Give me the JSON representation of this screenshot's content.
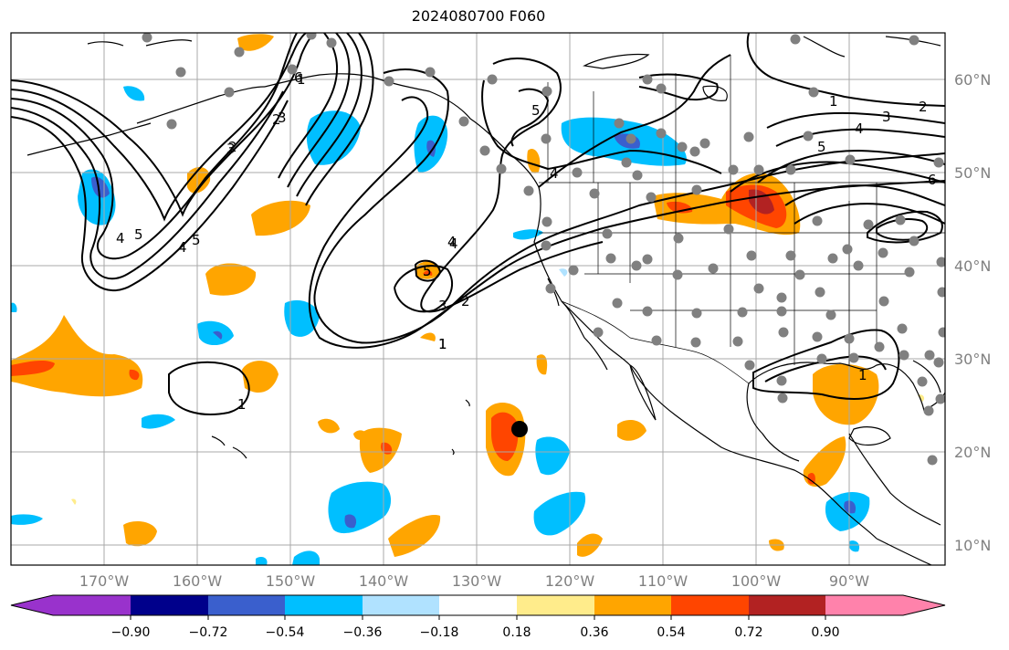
{
  "title": "2024080700 F060",
  "map": {
    "lat_labels": [
      "60°N",
      "50°N",
      "40°N",
      "30°N",
      "20°N",
      "10°N"
    ],
    "lon_labels": [
      "170°W",
      "160°W",
      "150°W",
      "140°W",
      "130°W",
      "120°W",
      "110°W",
      "100°W",
      "90°W"
    ],
    "contour_labels": [
      "1",
      "2",
      "3",
      "4",
      "5",
      "6",
      "4",
      "5",
      "4",
      "3",
      "2",
      "1",
      "5",
      "4",
      "5",
      "3",
      "2",
      "1",
      "1",
      "2",
      "3",
      "4",
      "5",
      "6",
      "1",
      "1",
      "5",
      "4"
    ]
  },
  "colorbar": {
    "tick_labels": [
      "−0.90",
      "−0.72",
      "−0.54",
      "−0.36",
      "−0.18",
      "0.18",
      "0.36",
      "0.54",
      "0.72",
      "0.90"
    ],
    "colors": [
      "#9932cc",
      "#00008b",
      "#3a5fcd",
      "#00bfff",
      "#b0e2ff",
      "#ffffff",
      "#ffec8b",
      "#ffa500",
      "#ff4500",
      "#b22222",
      "#ff82ab",
      "#ff82ab"
    ]
  },
  "colors": {
    "grid": "#a9a9a9",
    "coast": "#000000",
    "station": "#808080"
  }
}
